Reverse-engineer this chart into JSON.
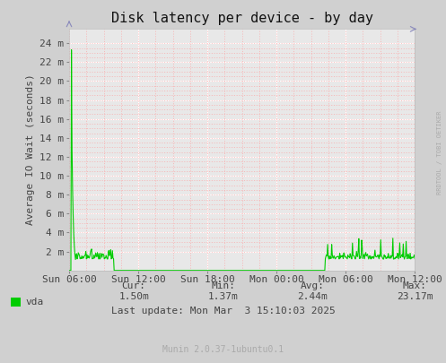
{
  "title": "Disk latency per device - by day",
  "ylabel": "Average IO Wait (seconds)",
  "bg_color": "#d0d0d0",
  "plot_bg_color": "#e8e8e8",
  "line_color": "#00cc00",
  "x_tick_labels": [
    "Sun 06:00",
    "Sun 12:00",
    "Sun 18:00",
    "Mon 00:00",
    "Mon 06:00",
    "Mon 12:00"
  ],
  "y_tick_labels": [
    "2 m",
    "4 m",
    "6 m",
    "8 m",
    "10 m",
    "12 m",
    "14 m",
    "16 m",
    "18 m",
    "20 m",
    "22 m",
    "24 m"
  ],
  "ytick_values": [
    2,
    4,
    6,
    8,
    10,
    12,
    14,
    16,
    18,
    20,
    22,
    24
  ],
  "ylim": [
    0,
    25.5
  ],
  "legend_label": "vda",
  "legend_color": "#00cc00",
  "stats_cur": "1.50m",
  "stats_min": "1.37m",
  "stats_avg": "2.44m",
  "stats_max": "23.17m",
  "last_update": "Last update: Mon Mar  3 15:10:03 2025",
  "munin_version": "Munin 2.0.37-1ubuntu0.1",
  "watermark": "RRDTOOL / TOBI OETIKER",
  "title_fontsize": 11,
  "axis_label_fontsize": 8,
  "tick_fontsize": 8,
  "stats_fontsize": 8,
  "munin_fontsize": 7
}
